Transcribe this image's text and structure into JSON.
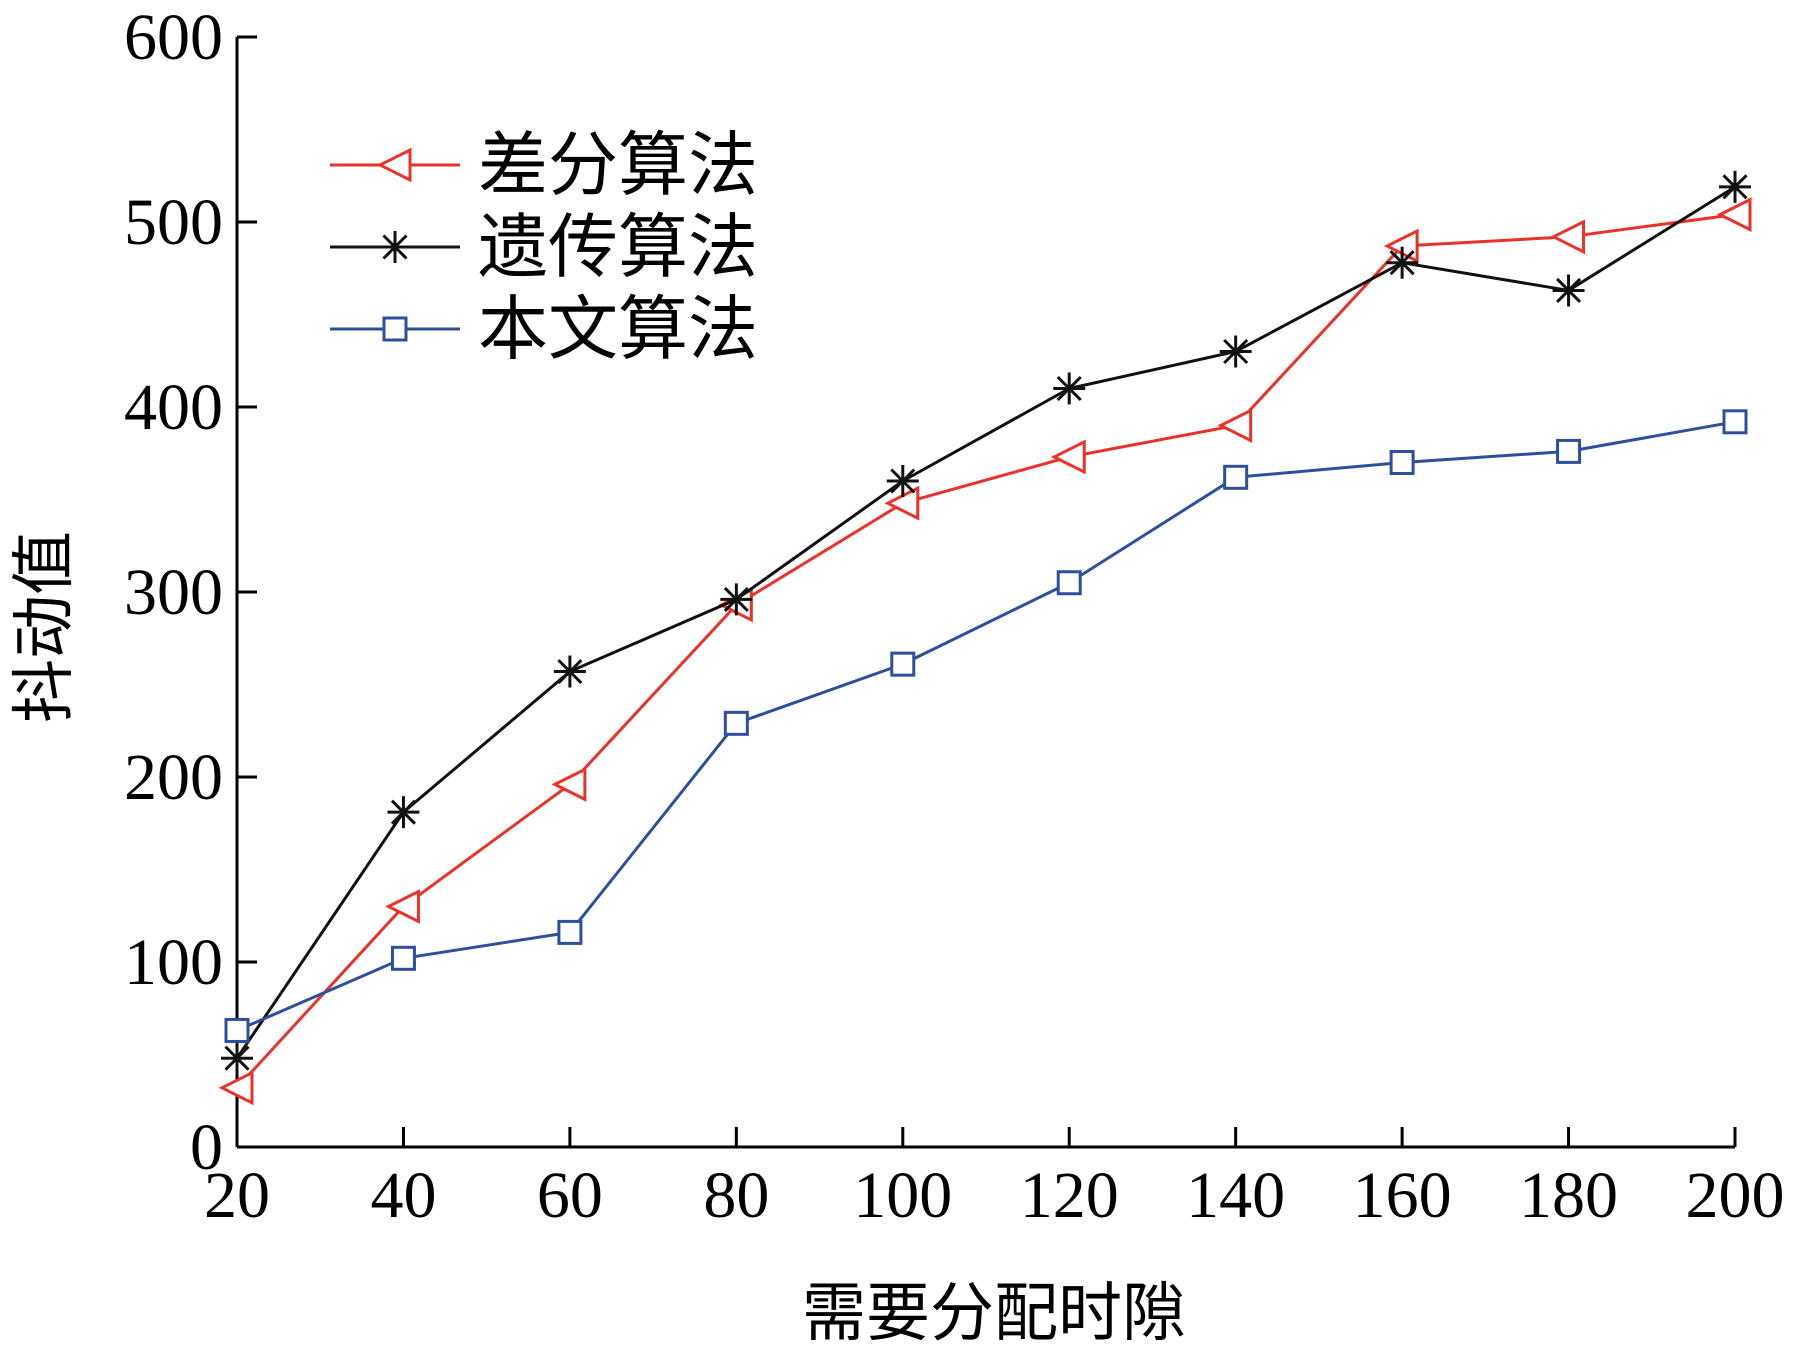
{
  "chart_data": {
    "type": "line",
    "xlabel": "需要分配时隙",
    "ylabel": "抖动值",
    "x": [
      20,
      40,
      60,
      80,
      100,
      120,
      140,
      160,
      180,
      200
    ],
    "xlim": [
      20,
      200
    ],
    "ylim": [
      0,
      600
    ],
    "x_ticks": [
      "20",
      "40",
      "60",
      "80",
      "100",
      "120",
      "140",
      "160",
      "180",
      "200"
    ],
    "y_ticks": [
      "0",
      "100",
      "200",
      "300",
      "400",
      "500",
      "600"
    ],
    "grid": false,
    "legend_position": "top-left",
    "series": [
      {
        "name": "差分算法",
        "color": "#e8322a",
        "marker": "triangle-left",
        "values": [
          32,
          130,
          196,
          293,
          348,
          373,
          390,
          487,
          492,
          504
        ]
      },
      {
        "name": "遗传算法",
        "color": "#111111",
        "marker": "asterisk",
        "values": [
          48,
          181,
          257,
          296,
          360,
          410,
          430,
          478,
          463,
          519
        ]
      },
      {
        "name": "本文算法",
        "color": "#2e4f9a",
        "marker": "square",
        "values": [
          63,
          102,
          116,
          229,
          261,
          305,
          362,
          370,
          376,
          392
        ]
      }
    ]
  }
}
